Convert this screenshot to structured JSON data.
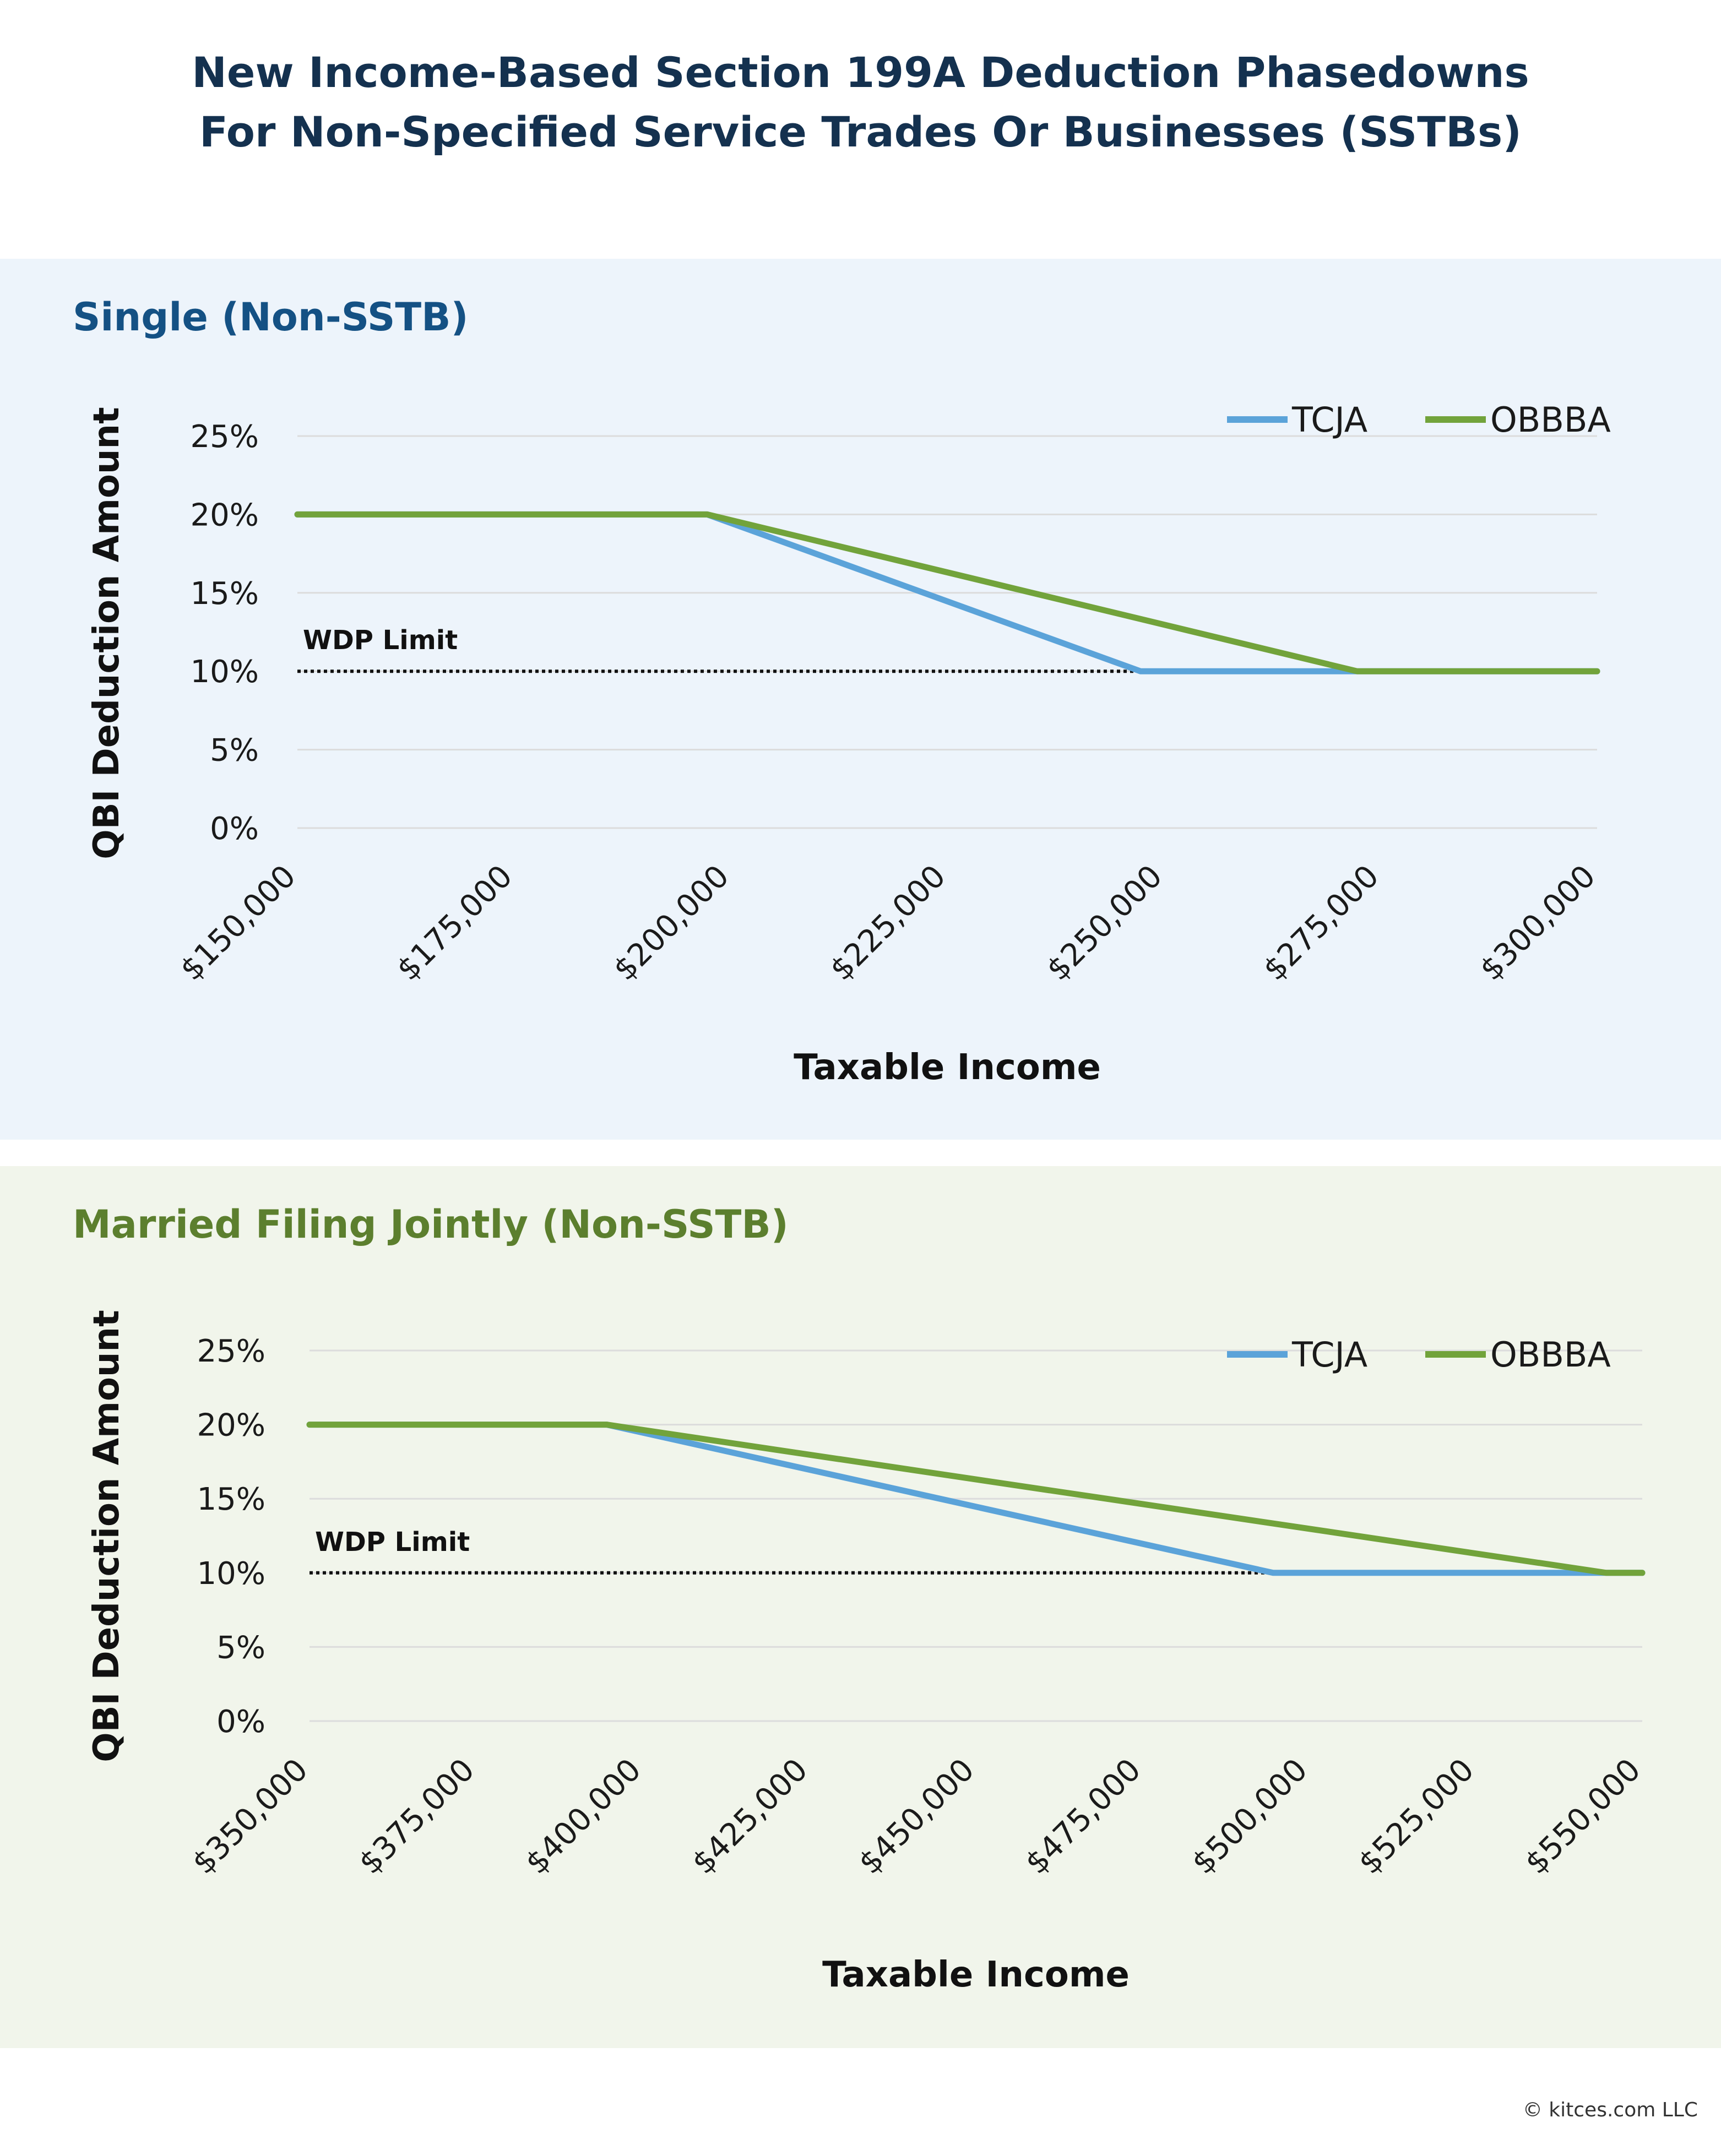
{
  "title_lines": [
    "New Income-Based Section 199A Deduction Phasedowns",
    "For Non-Specified Service Trades Or Businesses (SSTBs)"
  ],
  "footer": "© kitces.com LLC",
  "colors": {
    "tcja": "#5ba3d9",
    "obbba": "#72a33b",
    "single_title": "#145184",
    "mfj_title": "#5c7f2e",
    "grid": "#dcdcdc"
  },
  "chart_data": [
    {
      "type": "line",
      "title": "Single (Non-SSTB)",
      "xlabel": "Taxable Income",
      "ylabel": "QBI Deduction Amount",
      "xlim": [
        150000,
        300000
      ],
      "ylim": [
        0,
        25
      ],
      "x_ticks": [
        150000,
        175000,
        200000,
        225000,
        250000,
        275000,
        300000
      ],
      "x_tick_labels": [
        "$150,000",
        "$175,000",
        "$200,000",
        "$225,000",
        "$250,000",
        "$275,000",
        "$300,000"
      ],
      "y_ticks": [
        0,
        5,
        10,
        15,
        20,
        25
      ],
      "y_tick_labels": [
        "0%",
        "5%",
        "10%",
        "15%",
        "20%",
        "25%"
      ],
      "grid": true,
      "legend": "top-right",
      "series": [
        {
          "name": "TCJA",
          "x": [
            150000,
            197300,
            247300,
            300000
          ],
          "y": [
            20,
            20,
            10,
            10
          ]
        },
        {
          "name": "OBBBA",
          "x": [
            150000,
            197300,
            272300,
            300000
          ],
          "y": [
            20,
            20,
            10,
            10
          ]
        }
      ],
      "reference_line": {
        "label": "WDP Limit",
        "y": 10
      }
    },
    {
      "type": "line",
      "title": "Married Filing Jointly (Non-SSTB)",
      "xlabel": "Taxable Income",
      "ylabel": "QBI Deduction Amount",
      "xlim": [
        350000,
        550000
      ],
      "ylim": [
        0,
        25
      ],
      "x_ticks": [
        350000,
        375000,
        400000,
        425000,
        450000,
        475000,
        500000,
        525000,
        550000
      ],
      "x_tick_labels": [
        "$350,000",
        "$375,000",
        "$400,000",
        "$425,000",
        "$450,000",
        "$475,000",
        "$500,000",
        "$525,000",
        "$550,000"
      ],
      "y_ticks": [
        0,
        5,
        10,
        15,
        20,
        25
      ],
      "y_tick_labels": [
        "0%",
        "5%",
        "10%",
        "15%",
        "20%",
        "25%"
      ],
      "grid": true,
      "legend": "top-right",
      "series": [
        {
          "name": "TCJA",
          "x": [
            350000,
            394600,
            494600,
            550000
          ],
          "y": [
            20,
            20,
            10,
            10
          ]
        },
        {
          "name": "OBBBA",
          "x": [
            350000,
            394600,
            544600,
            550000
          ],
          "y": [
            20,
            20,
            10,
            10
          ]
        }
      ],
      "reference_line": {
        "label": "WDP Limit",
        "y": 10
      }
    }
  ]
}
